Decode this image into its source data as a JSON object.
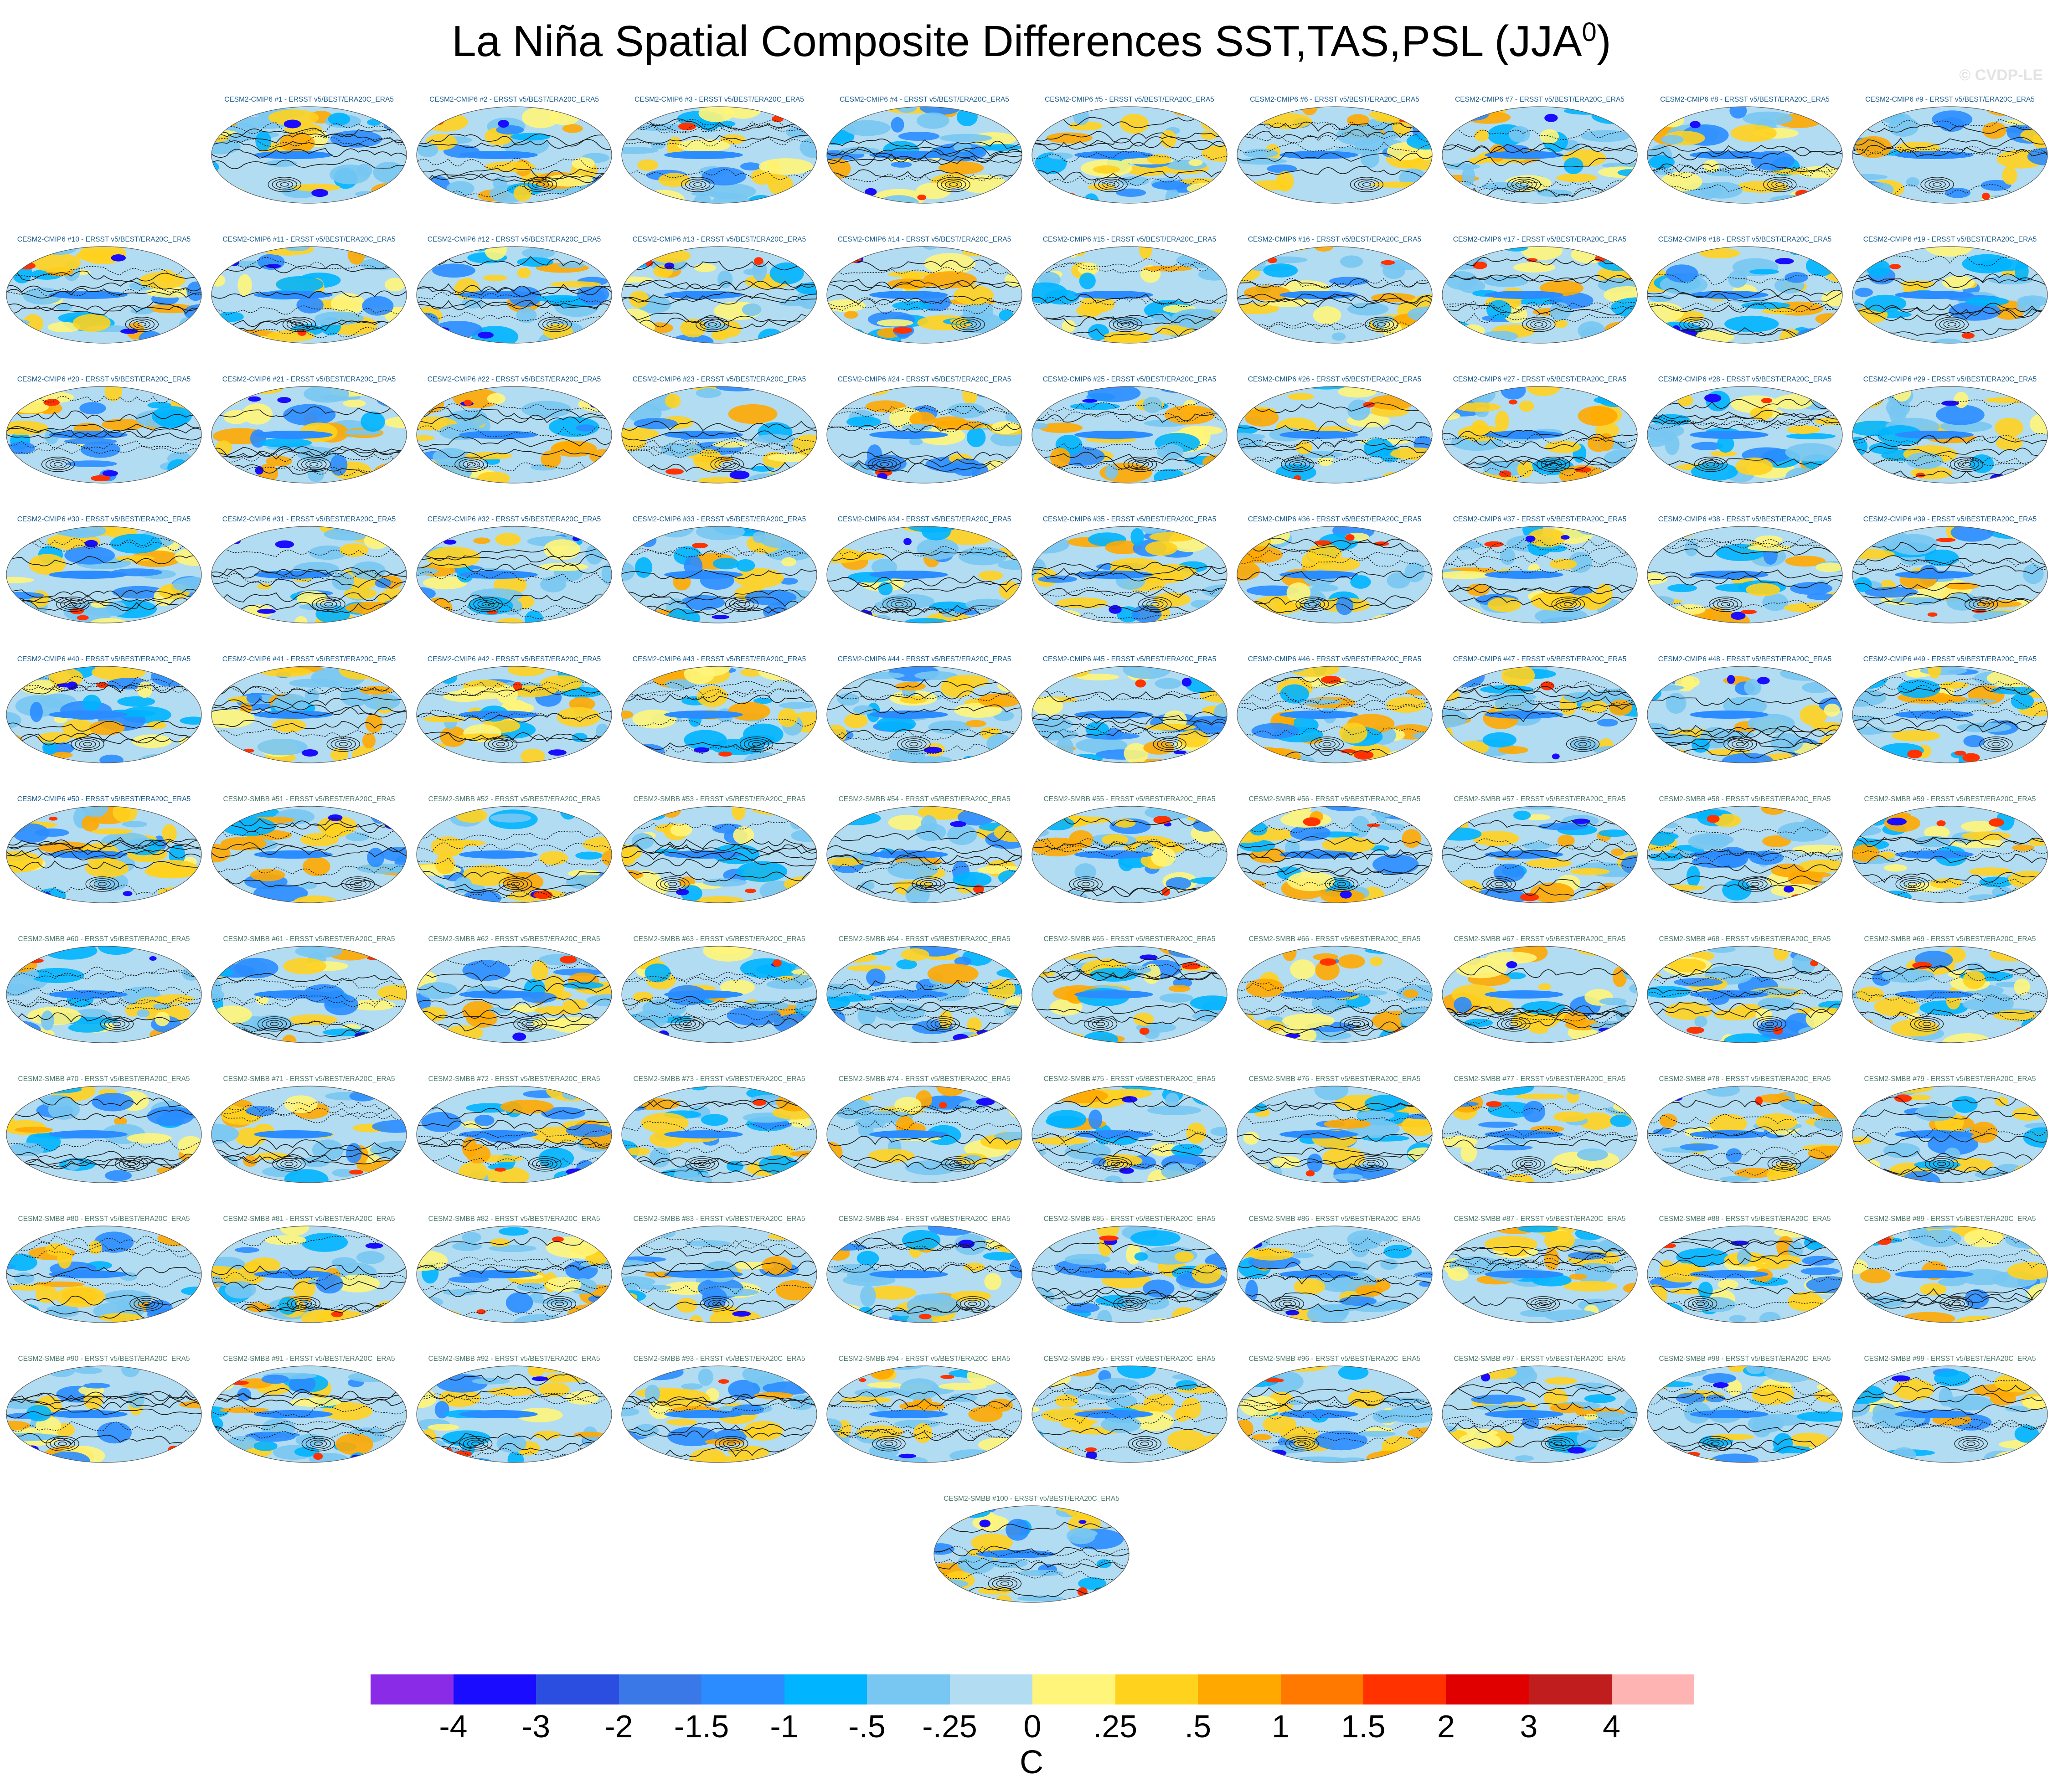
{
  "title": {
    "main": "La Niña Spatial Composite Differences SST,TAS,PSL (JJA",
    "sup": "0",
    "close": ")"
  },
  "watermark": "© CVDP-LE",
  "panel_suffix": " - ERSST v5/BEST/ERA20C_ERA5",
  "panel_groups": [
    {
      "name": "CESM2-CMIP6",
      "first": 1,
      "last": 50,
      "title_color": "#1c5c8c"
    },
    {
      "name": "CESM2-SMBB",
      "first": 51,
      "last": 100,
      "title_color": "#4d7a6a"
    }
  ],
  "colorbar": {
    "colors": [
      "#8a2be8",
      "#1a0cff",
      "#2b4ee0",
      "#3a78e8",
      "#2a8cff",
      "#00b4ff",
      "#78c6f2",
      "#b2dcf2",
      "#fff57a",
      "#ffd21e",
      "#ffa800",
      "#ff7800",
      "#ff3200",
      "#e00000",
      "#c01e1e",
      "#ffb4b4"
    ],
    "labels": [
      "-4",
      "-3",
      "-2",
      "-1.5",
      "-1",
      "-.5",
      "-.25",
      "0",
      ".25",
      ".5",
      "1",
      "1.5",
      "2",
      "3",
      "4"
    ],
    "units": "C"
  },
  "legend_palette": {
    "ocean_land_fill_cold": "#5aaaf0",
    "ocean_land_fill_warm": "#f5b83a",
    "contour": "#1a1a1a"
  }
}
